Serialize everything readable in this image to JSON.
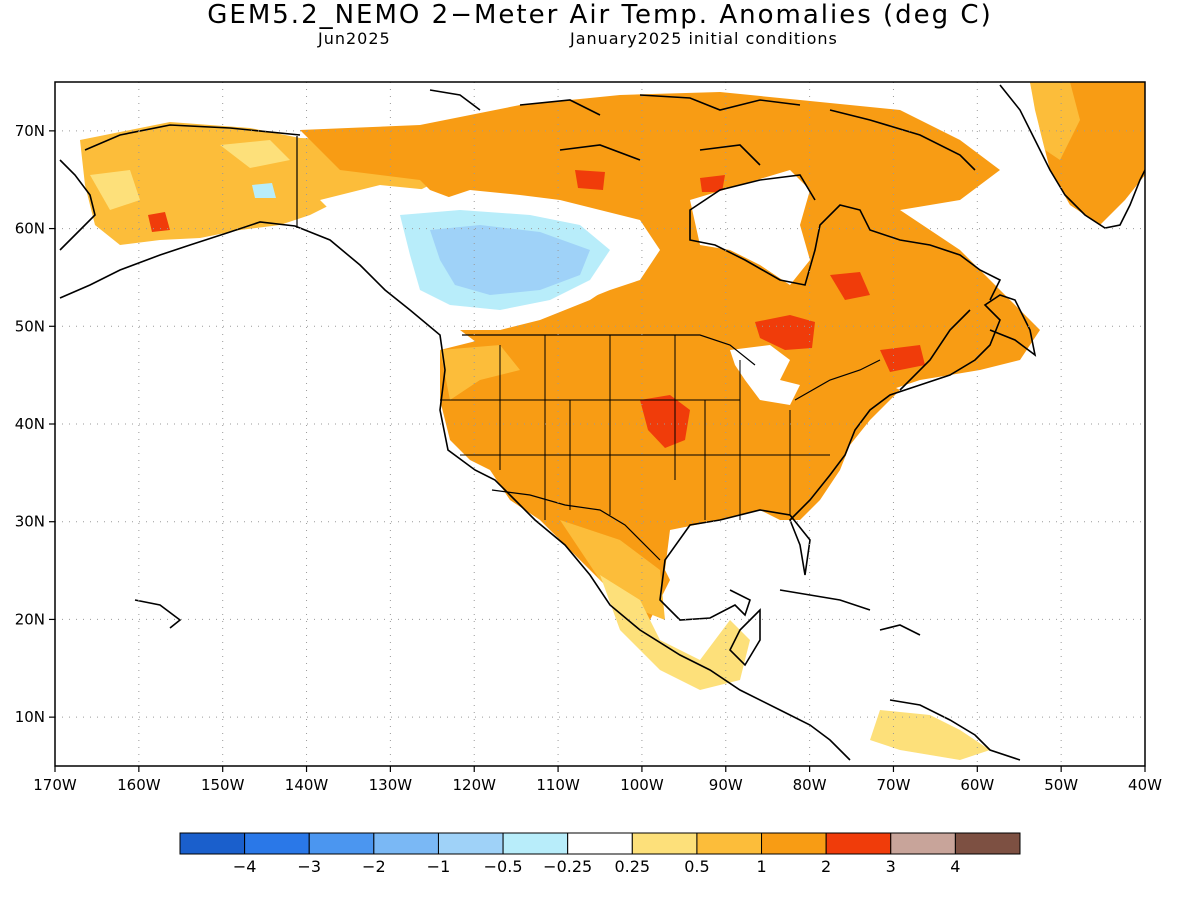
{
  "header": {
    "title": "GEM5.2_NEMO 2−Meter Air Temp. Anomalies (deg C)",
    "subtitle_left": "Jun2025",
    "subtitle_right": "January2025 initial conditions"
  },
  "map": {
    "lon_range": [
      -170,
      -40
    ],
    "lat_range": [
      5,
      75
    ],
    "lon_ticks": [
      "170W",
      "160W",
      "150W",
      "140W",
      "130W",
      "120W",
      "110W",
      "100W",
      "90W",
      "80W",
      "70W",
      "60W",
      "50W",
      "40W"
    ],
    "lat_ticks": [
      "10N",
      "20N",
      "30N",
      "40N",
      "50N",
      "60N",
      "70N"
    ],
    "grid": true,
    "region": "North America"
  },
  "colorbar": {
    "colors": [
      "#1a5fcc",
      "#2a78e8",
      "#4b96f0",
      "#7ab8f5",
      "#9fd2f8",
      "#b8edfa",
      "#ffffff",
      "#fde07a",
      "#fcbd3a",
      "#f89c14",
      "#f03c0a",
      "#c8a49a",
      "#7d5042"
    ],
    "labels": [
      "−4",
      "−3",
      "−2",
      "−1",
      "−0.5",
      "−0.25",
      "0.25",
      "0.5",
      "1",
      "2",
      "3",
      "4"
    ]
  }
}
